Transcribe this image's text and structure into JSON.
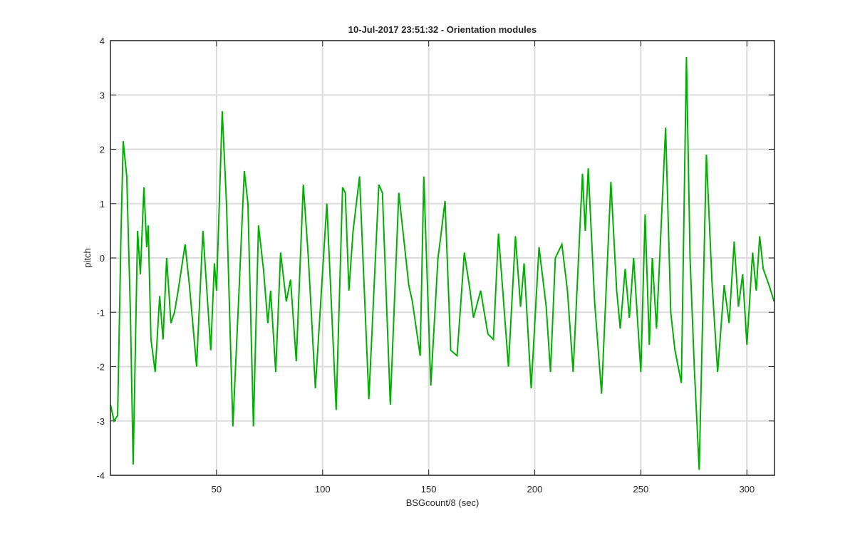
{
  "chart_data": {
    "type": "line",
    "title": "10-Jul-2017 23:51:32 - Orientation modules",
    "x_label": "BSGcount/8 (sec)",
    "y_label": "pitch",
    "xlim": [
      0,
      313
    ],
    "ylim": [
      -4,
      4
    ],
    "xticks": [
      50,
      100,
      150,
      200,
      250,
      300
    ],
    "yticks": [
      -4,
      -3,
      -2,
      -1,
      0,
      1,
      2,
      3,
      4
    ],
    "grid": true,
    "series": [
      {
        "color": "#00b000",
        "x": [
          0,
          1.7,
          3.4,
          5.0,
          6.0,
          7.7,
          9.4,
          10.7,
          12.8,
          14.1,
          15.8,
          17.1,
          17.8,
          19.1,
          21.1,
          23.2,
          24.8,
          26.5,
          28.5,
          30.2,
          31.9,
          35.2,
          37.2,
          40.6,
          43.6,
          47.3,
          49.0,
          50.0,
          52.7,
          54.7,
          57.7,
          60.4,
          63.1,
          64.8,
          67.4,
          69.8,
          72.1,
          74.2,
          75.5,
          77.9,
          80.2,
          82.9,
          84.9,
          87.6,
          90.9,
          93.3,
          96.6,
          102.0,
          106.4,
          109.4,
          110.7,
          112.4,
          114.4,
          117.4,
          121.8,
          126.5,
          128.2,
          131.9,
          135.9,
          140.6,
          142.3,
          146.0,
          147.7,
          151.0,
          154.4,
          155.4,
          157.7,
          160.4,
          163.4,
          166.8,
          169.5,
          171.1,
          174.5,
          177.9,
          180.5,
          182.9,
          187.6,
          190.9,
          193.3,
          195.0,
          198.3,
          202.0,
          205.4,
          207.4,
          209.7,
          212.8,
          215.4,
          218.1,
          222.5,
          223.8,
          225.2,
          228.2,
          231.5,
          235.9,
          238.6,
          240.3,
          242.6,
          244.6,
          246.6,
          250.0,
          252.0,
          254.0,
          255.4,
          257.4,
          261.7,
          264.1,
          266.1,
          269.1,
          271.5,
          273.2,
          275.2,
          277.5,
          280.9,
          283.6,
          286.2,
          289.3,
          291.6,
          294.0,
          296.0,
          298.0,
          300.0,
          302.7,
          304.4,
          306.0,
          307.7,
          310.4,
          312.8
        ],
        "values": [
          -2.7,
          -3.0,
          -2.9,
          0.5,
          2.15,
          1.5,
          -1.0,
          -3.8,
          0.5,
          -0.3,
          1.3,
          0.2,
          0.6,
          -1.5,
          -2.1,
          -0.7,
          -1.5,
          0.0,
          -1.2,
          -1.0,
          -0.6,
          0.25,
          -0.5,
          -2.0,
          0.5,
          -1.7,
          -0.1,
          -0.6,
          2.7,
          1.0,
          -3.1,
          -0.8,
          1.6,
          1.0,
          -3.1,
          0.6,
          -0.2,
          -1.2,
          -0.6,
          -2.1,
          0.1,
          -0.8,
          -0.4,
          -1.9,
          1.35,
          0,
          -2.4,
          1.0,
          -2.8,
          1.3,
          1.2,
          -0.6,
          0.5,
          1.5,
          -2.6,
          1.35,
          1.2,
          -2.7,
          1.2,
          -0.5,
          -0.8,
          -1.8,
          1.5,
          -2.35,
          0.0,
          0.3,
          1.05,
          -1.7,
          -1.8,
          0.1,
          -0.6,
          -1.1,
          -0.6,
          -1.4,
          -1.5,
          0.45,
          -2.0,
          0.4,
          -0.9,
          -0.1,
          -2.4,
          0.2,
          -0.9,
          -2.1,
          0.0,
          0.25,
          -0.6,
          -2.1,
          1.55,
          0.5,
          1.65,
          -0.8,
          -2.5,
          1.4,
          -0.6,
          -1.3,
          -0.2,
          -1.1,
          0.0,
          -2.1,
          0.8,
          -1.6,
          0.0,
          -1.3,
          2.4,
          -1.0,
          -1.7,
          -2.3,
          3.7,
          0,
          -2.0,
          -3.9,
          1.9,
          -0.5,
          -2.1,
          -0.5,
          -1.2,
          0.3,
          -0.9,
          -0.3,
          -1.6,
          0.1,
          -0.6,
          0.4,
          -0.2,
          -0.5,
          -0.8
        ]
      }
    ]
  }
}
